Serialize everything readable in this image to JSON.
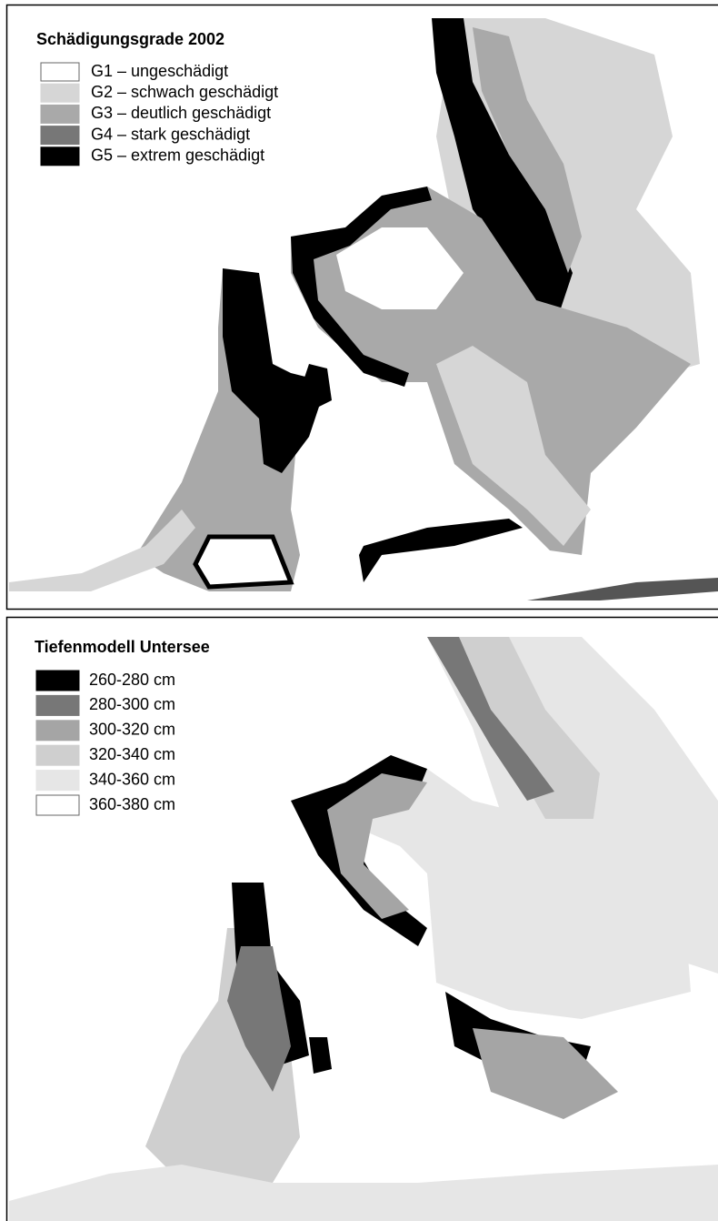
{
  "panels": [
    {
      "title": "Schädigungsgrade 2002",
      "legend": [
        {
          "label": "G1 – ungeschädigt",
          "color": "#ffffff"
        },
        {
          "label": "G2 – schwach geschädigt",
          "color": "#d6d6d6"
        },
        {
          "label": "G3 – deutlich geschädigt",
          "color": "#a9a9a9"
        },
        {
          "label": "G4 – stark geschädigt",
          "color": "#777777"
        },
        {
          "label": "G5 – extrem geschädigt",
          "color": "#000000"
        }
      ]
    },
    {
      "title": "Tiefenmodell  Untersee",
      "legend": [
        {
          "label": "260-280 cm",
          "color": "#000000"
        },
        {
          "label": "280-300 cm",
          "color": "#777777"
        },
        {
          "label": "300-320 cm",
          "color": "#a5a5a5"
        },
        {
          "label": "320-340 cm",
          "color": "#cfcfcf"
        },
        {
          "label": "340-360 cm",
          "color": "#e6e6e6"
        },
        {
          "label": "360-380 cm",
          "color": "#ffffff"
        }
      ]
    }
  ]
}
